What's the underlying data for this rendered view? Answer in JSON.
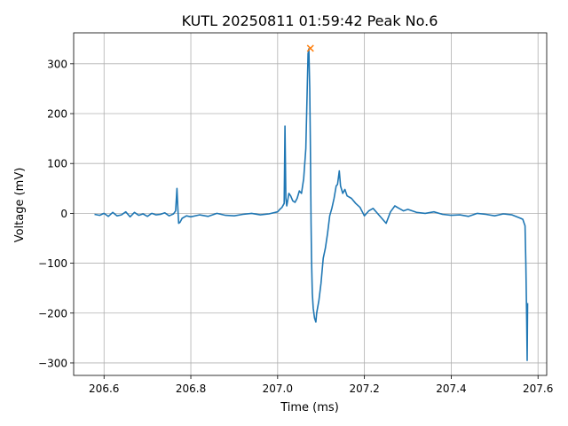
{
  "chart_data": {
    "type": "line",
    "title": "KUTL 20250811 01:59:42 Peak No.6",
    "xlabel": "Time (ms)",
    "ylabel": "Voltage (mV)",
    "xlim": [
      206.53,
      207.62
    ],
    "ylim": [
      -325,
      362
    ],
    "xticks": [
      206.6,
      206.8,
      207.0,
      207.2,
      207.4,
      207.6
    ],
    "xtick_labels": [
      "206.6",
      "206.8",
      "207.0",
      "207.2",
      "207.4",
      "207.6"
    ],
    "yticks": [
      -300,
      -200,
      -100,
      0,
      100,
      200,
      300
    ],
    "ytick_labels": [
      "−300",
      "−200",
      "−100",
      "0",
      "100",
      "200",
      "300"
    ],
    "grid": true,
    "series": [
      {
        "color": "#1f77b4",
        "x": [
          206.578,
          206.59,
          206.6,
          206.61,
          206.62,
          206.63,
          206.64,
          206.65,
          206.66,
          206.67,
          206.68,
          206.69,
          206.7,
          206.71,
          206.72,
          206.73,
          206.74,
          206.75,
          206.76,
          206.765,
          206.768,
          206.77,
          206.772,
          206.775,
          206.78,
          206.79,
          206.8,
          206.82,
          206.84,
          206.86,
          206.88,
          206.9,
          206.92,
          206.94,
          206.96,
          206.98,
          207.0,
          207.005,
          207.01,
          207.015,
          207.017,
          207.019,
          207.021,
          207.023,
          207.026,
          207.03,
          207.035,
          207.04,
          207.045,
          207.05,
          207.055,
          207.06,
          207.065,
          207.07,
          207.072,
          207.074,
          207.0755,
          207.077,
          207.078,
          207.079,
          207.08,
          207.082,
          207.085,
          207.088,
          207.09,
          207.095,
          207.1,
          207.105,
          207.11,
          207.115,
          207.12,
          207.125,
          207.13,
          207.135,
          207.138,
          207.142,
          207.145,
          207.15,
          207.155,
          207.16,
          207.17,
          207.18,
          207.19,
          207.2,
          207.21,
          207.22,
          207.23,
          207.24,
          207.25,
          207.26,
          207.27,
          207.28,
          207.29,
          207.3,
          207.32,
          207.34,
          207.36,
          207.38,
          207.4,
          207.42,
          207.44,
          207.46,
          207.48,
          207.5,
          207.52,
          207.54,
          207.56,
          207.565,
          207.568,
          207.57,
          207.572,
          207.574,
          207.575,
          207.576
        ],
        "y": [
          -2,
          -4,
          0,
          -6,
          2,
          -5,
          -3,
          3,
          -7,
          2,
          -4,
          -1,
          -6,
          0,
          -3,
          -2,
          1,
          -5,
          -1,
          5,
          50,
          10,
          -20,
          -18,
          -10,
          -5,
          -7,
          -3,
          -6,
          0,
          -4,
          -5,
          -2,
          0,
          -3,
          -1,
          3,
          8,
          12,
          20,
          175,
          30,
          15,
          25,
          40,
          35,
          25,
          22,
          30,
          45,
          40,
          70,
          130,
          320,
          330,
          250,
          140,
          -20,
          -90,
          -130,
          -160,
          -190,
          -210,
          -218,
          -200,
          -175,
          -140,
          -90,
          -70,
          -40,
          -5,
          10,
          30,
          55,
          58,
          85,
          55,
          40,
          48,
          35,
          30,
          20,
          12,
          -5,
          5,
          10,
          0,
          -10,
          -20,
          3,
          15,
          10,
          5,
          8,
          2,
          0,
          3,
          -2,
          -4,
          -3,
          -6,
          0,
          -2,
          -5,
          -1,
          -3,
          -10,
          -12,
          -20,
          -25,
          -100,
          -220,
          -295,
          -180
        ]
      }
    ],
    "markers": [
      {
        "x": 207.0755,
        "y": 331,
        "symbol": "x",
        "color": "#ff7f0e"
      }
    ]
  }
}
